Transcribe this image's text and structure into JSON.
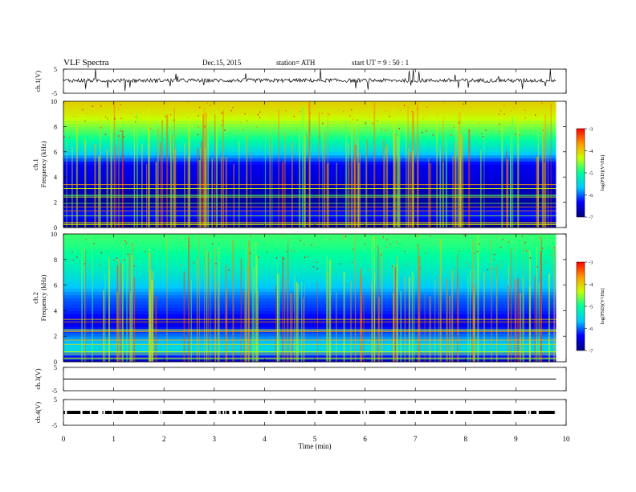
{
  "header": {
    "title": "VLF  Spectra",
    "date": "Dec.15, 2015",
    "station": "station= ATH",
    "start": "start  UT  =    9  : 50 : 1"
  },
  "colors": {
    "spectrogram_ramp": [
      "#000080",
      "#0000ff",
      "#00c8ff",
      "#00ff9a",
      "#c8ff00",
      "#ff9a00",
      "#ff0000"
    ],
    "waveform": "#000000",
    "bar_top": "#ff0000",
    "bar_bottom": "#000080"
  },
  "chart_data": [
    {
      "type": "line",
      "ylabel": "ch.1(V)",
      "ylim": [
        -5,
        5
      ],
      "yticks": [
        "5",
        "-5"
      ],
      "x_range_min": [
        0,
        9.8
      ],
      "description_of_signal": "noisy trace near +0.3 V"
    },
    {
      "type": "heatmap",
      "ylabel_channel": "ch.1",
      "ylabel": "Frequency  (kHz)",
      "ylim": [
        0,
        10
      ],
      "yticks": [
        "0",
        "2",
        "4",
        "6",
        "8",
        "10"
      ],
      "x_range_min": [
        0,
        9.8
      ],
      "colorbar": {
        "label": "log(PSD)(V²/Hz)",
        "ticks": [
          "-3",
          "-4",
          "-5",
          "-6",
          "-7"
        ],
        "range": [
          -7,
          -3
        ]
      },
      "bands_kHz_logPSD": [
        [
          0,
          -7.0
        ],
        [
          1,
          -6.2
        ],
        [
          2,
          -6.8
        ],
        [
          3,
          -6.7
        ],
        [
          4,
          -6.5
        ],
        [
          5,
          -6.4
        ],
        [
          6,
          -5.5
        ],
        [
          7,
          -5.0
        ],
        [
          8,
          -4.6
        ],
        [
          9,
          -4.2
        ],
        [
          10,
          -4.0
        ]
      ]
    },
    {
      "type": "heatmap",
      "ylabel_channel": "ch.2",
      "ylabel": "Frequency  (kHz)",
      "ylim": [
        0,
        10
      ],
      "yticks": [
        "0",
        "2",
        "4",
        "6",
        "8",
        "10"
      ],
      "x_range_min": [
        0,
        9.8
      ],
      "colorbar": {
        "label": "log(PSD)(V²/Hz)",
        "ticks": [
          "-3",
          "-4",
          "-5",
          "-6",
          "-7"
        ],
        "range": [
          -7,
          -3
        ]
      },
      "bands_kHz_logPSD": [
        [
          0,
          -6.8
        ],
        [
          1,
          -5.4
        ],
        [
          2,
          -5.9
        ],
        [
          3,
          -6.5
        ],
        [
          4,
          -6.2
        ],
        [
          5,
          -6.0
        ],
        [
          6,
          -5.6
        ],
        [
          7,
          -5.3
        ],
        [
          8,
          -5.1
        ],
        [
          9,
          -4.9
        ],
        [
          10,
          -4.8
        ]
      ]
    },
    {
      "type": "line",
      "ylabel": "ch.3(V)",
      "ylim": [
        -5,
        5
      ],
      "yticks": [
        "5",
        "-5"
      ],
      "x_range_min": [
        0,
        9.8
      ],
      "value_V": 0
    },
    {
      "type": "line",
      "ylabel": "ch.4(V)",
      "ylim": [
        -5,
        5
      ],
      "yticks": [
        "5",
        "-5"
      ],
      "x_range_min": [
        0,
        9.8
      ],
      "value_V": 0,
      "description_of_signal": "flat level with dense square pulses"
    }
  ],
  "xaxis": {
    "label": "Time  (min)",
    "ticks": [
      "0",
      "1",
      "2",
      "3",
      "4",
      "5",
      "6",
      "7",
      "8",
      "9",
      "10"
    ],
    "range": [
      0,
      10
    ]
  }
}
